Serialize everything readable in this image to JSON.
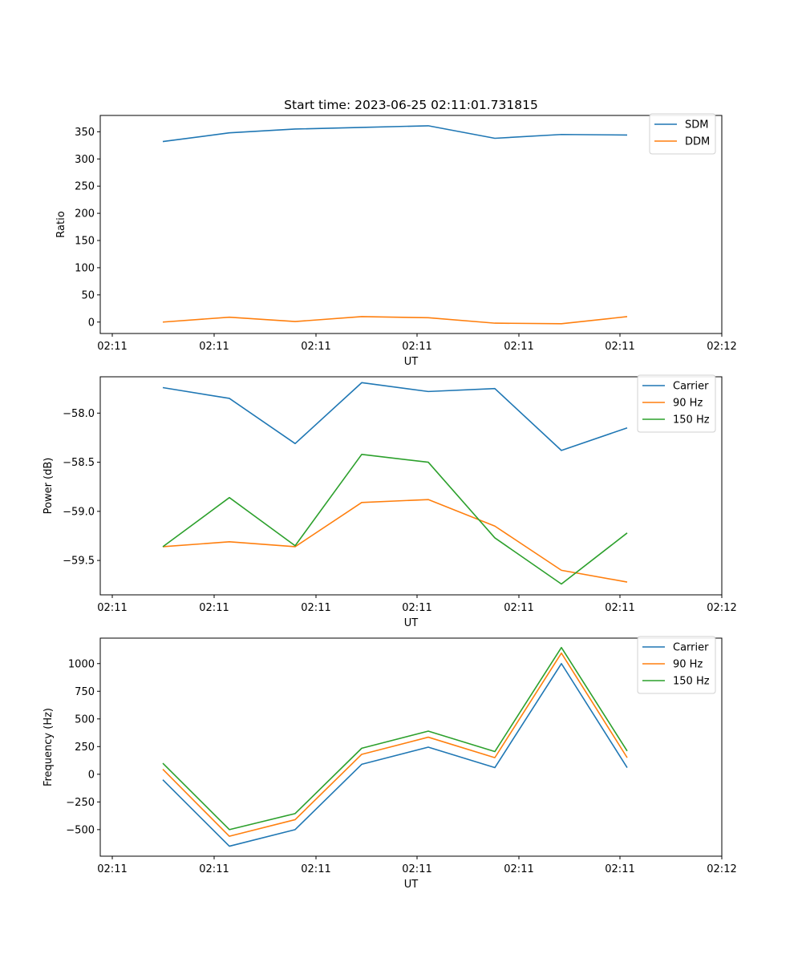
{
  "figure_title": "Start time: 2023-06-25 02:11:01.731815",
  "x_tick_labels": [
    "02:11",
    "02:11",
    "02:11",
    "02:11",
    "02:11",
    "02:11",
    "02:12"
  ],
  "chart_data": [
    {
      "type": "line",
      "title": "Start time: 2023-06-25 02:11:01.731815",
      "xlabel": "UT",
      "ylabel": "Ratio",
      "x": [
        1,
        2,
        3,
        4,
        5,
        6,
        7,
        8
      ],
      "ylim": [
        -21,
        380
      ],
      "yticks": [
        0,
        50,
        100,
        150,
        200,
        250,
        300,
        350
      ],
      "grid": false,
      "legend_position": "top-right",
      "series": [
        {
          "name": "SDM",
          "color": "#1f77b4",
          "values": [
            332,
            348,
            355,
            358,
            361,
            338,
            345,
            344
          ]
        },
        {
          "name": "DDM",
          "color": "#ff7f0e",
          "values": [
            0,
            9,
            1,
            10,
            8,
            -2,
            -3,
            10
          ]
        }
      ]
    },
    {
      "type": "line",
      "xlabel": "UT",
      "ylabel": "Power (dB)",
      "x": [
        1,
        2,
        3,
        4,
        5,
        6,
        7,
        8
      ],
      "ylim": [
        -59.85,
        -57.63
      ],
      "yticks": [
        -58.0,
        -58.5,
        -59.0,
        -59.5
      ],
      "ytick_labels": [
        "−58.0",
        "−58.5",
        "−59.0",
        "−59.5"
      ],
      "grid": false,
      "legend_position": "top-right",
      "series": [
        {
          "name": "Carrier",
          "color": "#1f77b4",
          "values": [
            -57.74,
            -57.85,
            -58.31,
            -57.69,
            -57.78,
            -57.75,
            -58.38,
            -58.15
          ]
        },
        {
          "name": "90 Hz",
          "color": "#ff7f0e",
          "values": [
            -59.36,
            -59.31,
            -59.36,
            -58.91,
            -58.88,
            -59.15,
            -59.6,
            -59.72
          ]
        },
        {
          "name": "150 Hz",
          "color": "#2ca02c",
          "values": [
            -59.36,
            -58.86,
            -59.35,
            -58.42,
            -58.5,
            -59.27,
            -59.74,
            -59.22
          ]
        }
      ]
    },
    {
      "type": "line",
      "xlabel": "UT",
      "ylabel": "Frequency (Hz)",
      "x": [
        1,
        2,
        3,
        4,
        5,
        6,
        7,
        8
      ],
      "ylim": [
        -740,
        1230
      ],
      "yticks": [
        1000,
        750,
        500,
        250,
        0,
        -250,
        -500
      ],
      "ytick_labels": [
        "1000",
        "750",
        "500",
        "250",
        "0",
        "−250",
        "−500"
      ],
      "grid": false,
      "legend_position": "top-right",
      "series": [
        {
          "name": "Carrier",
          "color": "#1f77b4",
          "values": [
            -50,
            -650,
            -500,
            90,
            245,
            60,
            1000,
            60
          ]
        },
        {
          "name": "90 Hz",
          "color": "#ff7f0e",
          "values": [
            45,
            -560,
            -410,
            180,
            335,
            150,
            1095,
            150
          ]
        },
        {
          "name": "150 Hz",
          "color": "#2ca02c",
          "values": [
            100,
            -500,
            -355,
            235,
            390,
            205,
            1145,
            210
          ]
        }
      ]
    }
  ]
}
